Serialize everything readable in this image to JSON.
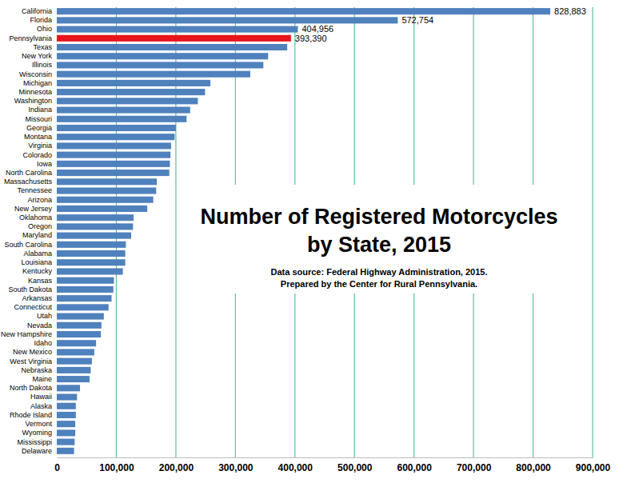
{
  "chart_data": {
    "type": "bar",
    "orientation": "horizontal",
    "title": [
      "Number of Registered Motorcycles",
      "by State, 2015"
    ],
    "subtitle": [
      "Data source: Federal Highway Administration, 2015.",
      "Prepared by the Center for Rural Pennsylvania."
    ],
    "categories": [
      "California",
      "Florida",
      "Ohio",
      "Pennsylvania",
      "Texas",
      "New York",
      "Illinois",
      "Wisconsin",
      "Michigan",
      "Minnesota",
      "Washington",
      "Indiana",
      "Missouri",
      "Georgia",
      "Montana",
      "Virginia",
      "Colorado",
      "Iowa",
      "North Carolina",
      "Massachusetts",
      "Tennessee",
      "Arizona",
      "New Jersey",
      "Oklahoma",
      "Oregon",
      "Maryland",
      "South Carolina",
      "Alabama",
      "Louisiana",
      "Kentucky",
      "Kansas",
      "South Dakota",
      "Arkansas",
      "Connecticut",
      "Utah",
      "Nevada",
      "New Hampshire",
      "Idaho",
      "New Mexico",
      "West Virginia",
      "Nebraska",
      "Maine",
      "North Dakota",
      "Hawaii",
      "Alaska",
      "Rhode Island",
      "Vermont",
      "Wyoming",
      "Mississippi",
      "Delaware"
    ],
    "values": [
      828883,
      572754,
      404956,
      393390,
      387000,
      355000,
      347000,
      325000,
      258000,
      249000,
      237000,
      224000,
      218000,
      200000,
      198000,
      192000,
      191000,
      190000,
      189000,
      168000,
      167000,
      162000,
      152000,
      129000,
      128000,
      125000,
      116000,
      115000,
      115000,
      111000,
      96000,
      95000,
      92000,
      87000,
      79000,
      75000,
      74000,
      66000,
      63000,
      59000,
      57000,
      55000,
      39000,
      34000,
      32000,
      32000,
      31000,
      31000,
      30000,
      29000
    ],
    "value_labels": [
      "828,883",
      "572,754",
      "404,956",
      "393,390",
      null,
      null,
      null,
      null,
      null,
      null,
      null,
      null,
      null,
      null,
      null,
      null,
      null,
      null,
      null,
      null,
      null,
      null,
      null,
      null,
      null,
      null,
      null,
      null,
      null,
      null,
      null,
      null,
      null,
      null,
      null,
      null,
      null,
      null,
      null,
      null,
      null,
      null,
      null,
      null,
      null,
      null,
      null,
      null,
      null,
      null
    ],
    "data_labels": true,
    "colors": [
      "#4f81bd",
      "#4f81bd",
      "#4f81bd",
      "#e8141b",
      "#4f81bd",
      "#4f81bd",
      "#4f81bd",
      "#4f81bd",
      "#4f81bd",
      "#4f81bd",
      "#4f81bd",
      "#4f81bd",
      "#4f81bd",
      "#4f81bd",
      "#4f81bd",
      "#4f81bd",
      "#4f81bd",
      "#4f81bd",
      "#4f81bd",
      "#4f81bd",
      "#4f81bd",
      "#4f81bd",
      "#4f81bd",
      "#4f81bd",
      "#4f81bd",
      "#4f81bd",
      "#4f81bd",
      "#4f81bd",
      "#4f81bd",
      "#4f81bd",
      "#4f81bd",
      "#4f81bd",
      "#4f81bd",
      "#4f81bd",
      "#4f81bd",
      "#4f81bd",
      "#4f81bd",
      "#4f81bd",
      "#4f81bd",
      "#4f81bd",
      "#4f81bd",
      "#4f81bd",
      "#4f81bd",
      "#4f81bd",
      "#4f81bd",
      "#4f81bd",
      "#4f81bd",
      "#4f81bd",
      "#4f81bd",
      "#4f81bd"
    ],
    "xlim": [
      0,
      900000
    ],
    "xticks": [
      0,
      {
        "value": 100000,
        "label": "100,000"
      },
      {
        "value": 200000,
        "label": "200,000"
      },
      {
        "value": 300000,
        "label": "300,000"
      },
      {
        "value": 400000,
        "label": "400,000"
      },
      {
        "value": 500000,
        "label": "500,000"
      },
      {
        "value": 600000,
        "label": "600,000"
      },
      {
        "value": 700000,
        "label": "700,000"
      },
      {
        "value": 800000,
        "label": "800,000"
      },
      {
        "value": 900000,
        "label": "900,000"
      }
    ],
    "grid": true
  }
}
